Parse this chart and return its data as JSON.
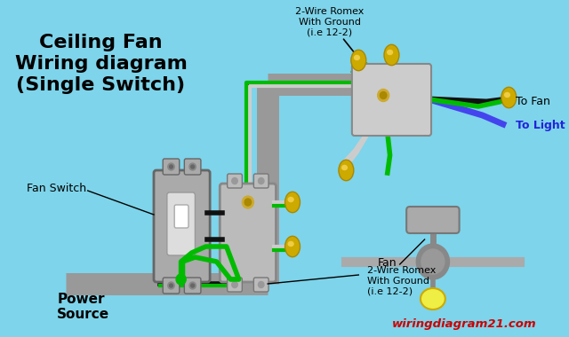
{
  "bg_color": "#7ED4EA",
  "title_lines": [
    "Ceiling Fan",
    "Wiring diagram",
    "(Single Switch)"
  ],
  "title_fontsize": 16,
  "watermark": "wiringdiagram21.com",
  "watermark_color": "#CC0000",
  "conduit_color": "#999999",
  "conduit_lw": 18,
  "wire_black": "#111111",
  "wire_green": "#00BB00",
  "wire_white": "#CCCCCC",
  "wire_blue": "#4444EE",
  "wire_lw": 3.0,
  "connector_color_outer": "#BBAA00",
  "connector_color_inner": "#DDCC33"
}
